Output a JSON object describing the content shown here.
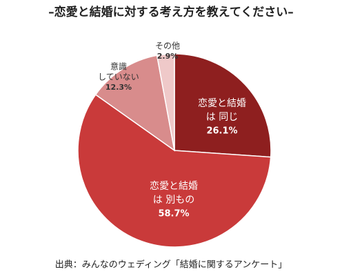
{
  "chart_data": {
    "type": "pie",
    "title": "–恋愛と結婚に対する考え方を教えてください–",
    "categories": [
      [
        "恋愛と結婚",
        "は 同じ"
      ],
      [
        "恋愛と結婚",
        "は 別もの"
      ],
      [
        "意識",
        "していない"
      ],
      [
        "その他"
      ]
    ],
    "values": [
      26.1,
      58.7,
      12.3,
      2.9
    ],
    "value_labels": [
      "26.1%",
      "58.7%",
      "12.3%",
      "2.9%"
    ],
    "colors": [
      "#8e1f1f",
      "#c93a3a",
      "#d88c8c",
      "#efc9c9"
    ],
    "source": "出典：みんなのウェディング「結婚に関するアンケート」"
  }
}
